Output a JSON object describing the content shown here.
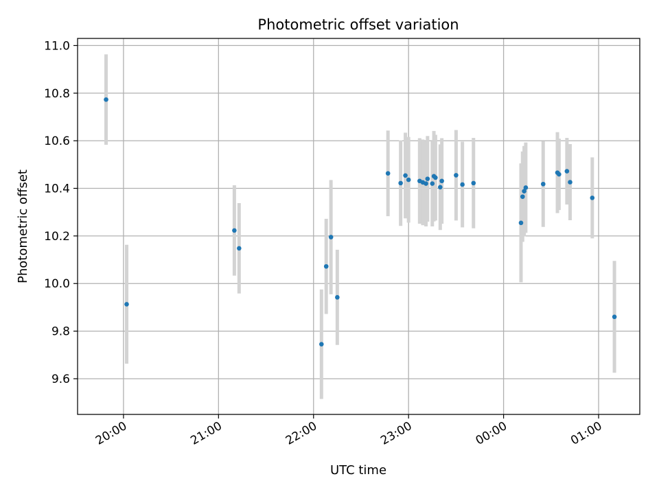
{
  "chart_data": {
    "type": "scatter",
    "title": "Photometric offset variation",
    "xlabel": "UTC time",
    "ylabel": "Photometric offset",
    "x_ticks": [
      "20:00",
      "21:00",
      "22:00",
      "23:00",
      "00:00",
      "01:00"
    ],
    "y_ticks": [
      "9.6",
      "9.8",
      "10.0",
      "10.2",
      "10.4",
      "10.6",
      "10.8",
      "11.0"
    ],
    "y_tick_values": [
      9.6,
      9.8,
      10.0,
      10.2,
      10.4,
      10.6,
      10.8,
      11.0
    ],
    "xlim": [
      "19:31",
      "25:26"
    ],
    "ylim": [
      9.45,
      11.03
    ],
    "grid": true,
    "colors": {
      "marker": "#1f77b4",
      "errorbar": "#d3d3d3",
      "grid": "#b0b0b0"
    },
    "points": [
      {
        "x": "19:49",
        "y": 10.773,
        "yerr": 0.19
      },
      {
        "x": "20:02",
        "y": 9.913,
        "yerr": 0.25
      },
      {
        "x": "21:10",
        "y": 10.223,
        "yerr": 0.19
      },
      {
        "x": "21:13",
        "y": 10.148,
        "yerr": 0.19
      },
      {
        "x": "22:05",
        "y": 9.745,
        "yerr": 0.23
      },
      {
        "x": "22:08",
        "y": 10.072,
        "yerr": 0.2
      },
      {
        "x": "22:11",
        "y": 10.195,
        "yerr": 0.24
      },
      {
        "x": "22:15",
        "y": 9.942,
        "yerr": 0.2
      },
      {
        "x": "22:47",
        "y": 10.463,
        "yerr": 0.18
      },
      {
        "x": "22:55",
        "y": 10.422,
        "yerr": 0.18
      },
      {
        "x": "22:58",
        "y": 10.454,
        "yerr": 0.18
      },
      {
        "x": "23:00",
        "y": 10.436,
        "yerr": 0.18
      },
      {
        "x": "23:07",
        "y": 10.431,
        "yerr": 0.18
      },
      {
        "x": "23:09",
        "y": 10.425,
        "yerr": 0.18
      },
      {
        "x": "23:11",
        "y": 10.42,
        "yerr": 0.18
      },
      {
        "x": "23:12",
        "y": 10.44,
        "yerr": 0.18
      },
      {
        "x": "23:15",
        "y": 10.42,
        "yerr": 0.18
      },
      {
        "x": "23:16",
        "y": 10.451,
        "yerr": 0.19
      },
      {
        "x": "23:17",
        "y": 10.445,
        "yerr": 0.18
      },
      {
        "x": "23:20",
        "y": 10.405,
        "yerr": 0.18
      },
      {
        "x": "23:21",
        "y": 10.431,
        "yerr": 0.18
      },
      {
        "x": "23:30",
        "y": 10.455,
        "yerr": 0.19
      },
      {
        "x": "23:34",
        "y": 10.416,
        "yerr": 0.18
      },
      {
        "x": "23:41",
        "y": 10.422,
        "yerr": 0.19
      },
      {
        "x": "24:11",
        "y": 10.255,
        "yerr": 0.25
      },
      {
        "x": "24:12",
        "y": 10.365,
        "yerr": 0.19
      },
      {
        "x": "24:13",
        "y": 10.388,
        "yerr": 0.19
      },
      {
        "x": "24:14",
        "y": 10.403,
        "yerr": 0.19
      },
      {
        "x": "24:25",
        "y": 10.418,
        "yerr": 0.18
      },
      {
        "x": "24:34",
        "y": 10.466,
        "yerr": 0.17
      },
      {
        "x": "24:35",
        "y": 10.459,
        "yerr": 0.15
      },
      {
        "x": "24:40",
        "y": 10.472,
        "yerr": 0.14
      },
      {
        "x": "24:42",
        "y": 10.426,
        "yerr": 0.16
      },
      {
        "x": "24:56",
        "y": 10.36,
        "yerr": 0.17
      },
      {
        "x": "25:10",
        "y": 9.86,
        "yerr": 0.235
      }
    ]
  }
}
